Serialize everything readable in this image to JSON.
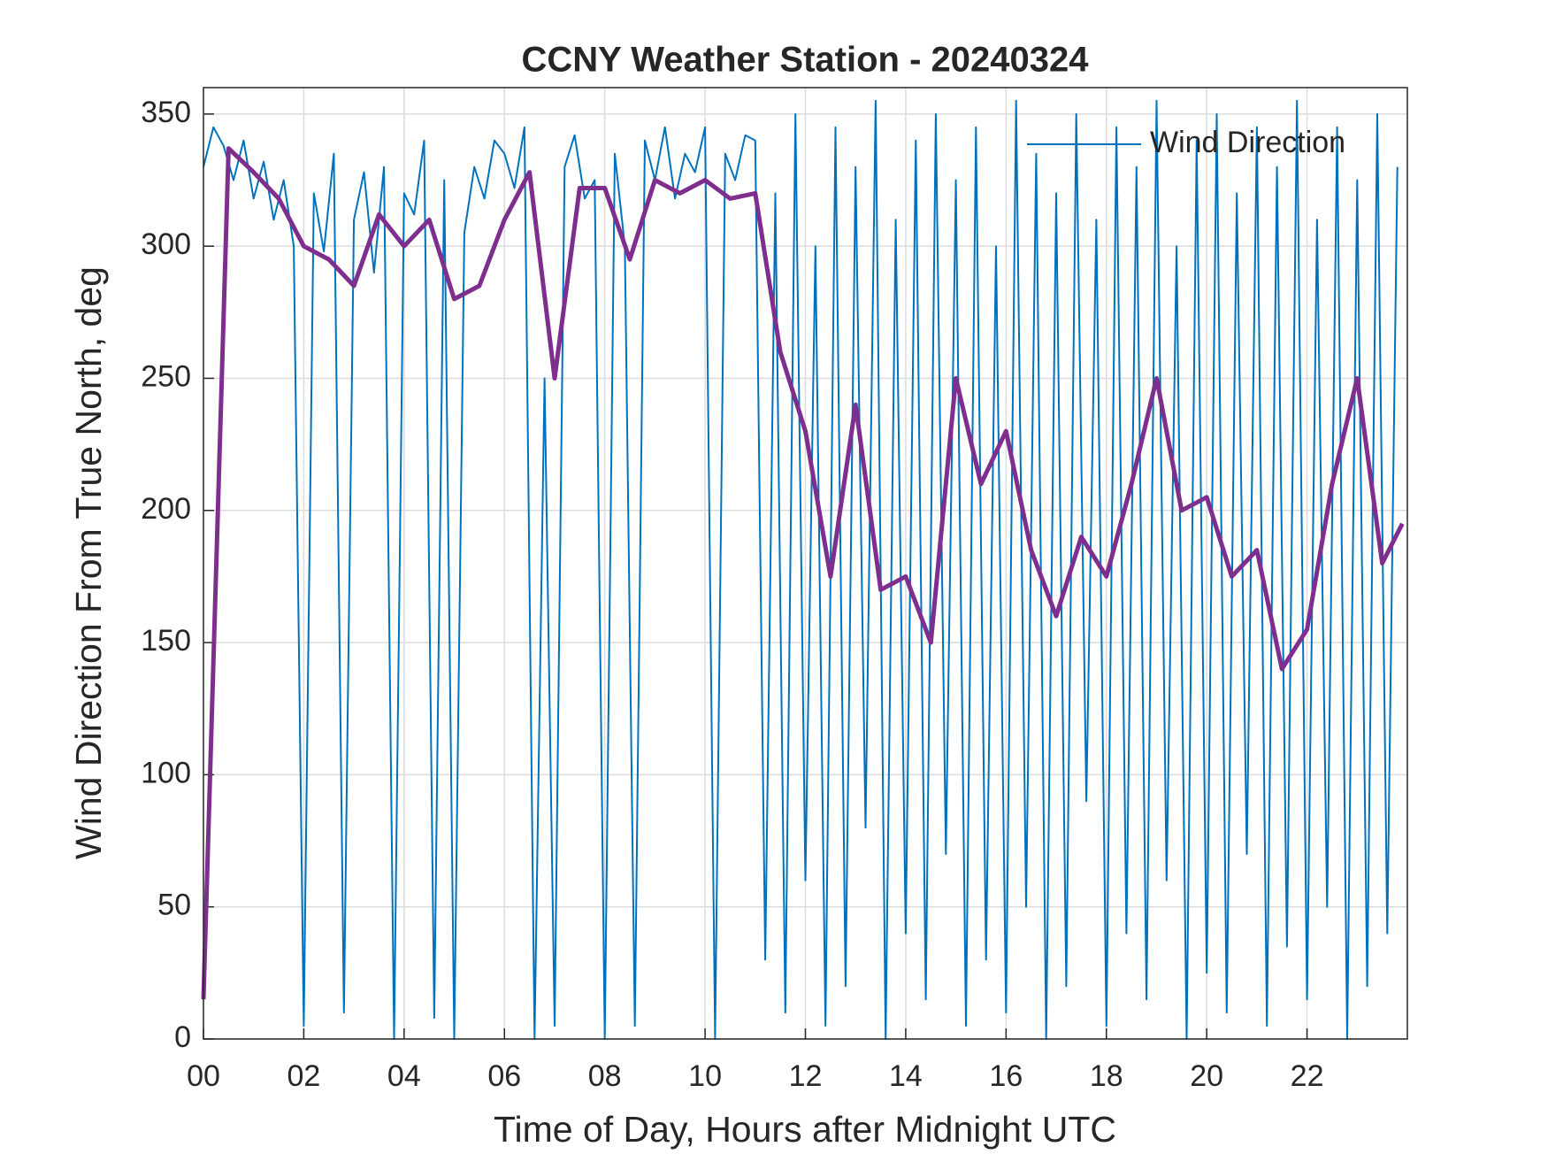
{
  "chart_data": {
    "type": "line",
    "title": "CCNY Weather Station - 20240324",
    "xlabel": "Time of Day, Hours after Midnight UTC",
    "ylabel": "Wind Direction From True North, deg",
    "xlim": [
      0,
      24
    ],
    "ylim": [
      0,
      360
    ],
    "xticks": [
      {
        "value": 0,
        "label": "00"
      },
      {
        "value": 2,
        "label": "02"
      },
      {
        "value": 4,
        "label": "04"
      },
      {
        "value": 6,
        "label": "06"
      },
      {
        "value": 8,
        "label": "08"
      },
      10,
      12,
      14,
      16,
      18,
      20,
      22
    ],
    "yticks": [
      0,
      50,
      100,
      150,
      200,
      250,
      300,
      350
    ],
    "grid": true,
    "legend": "upper right",
    "series": [
      {
        "name": "Wind Direction",
        "color": "#0072BD",
        "x": [
          0,
          0.2,
          0.4,
          0.6,
          0.8,
          1,
          1.2,
          1.4,
          1.6,
          1.8,
          2,
          2.2,
          2.4,
          2.6,
          2.8,
          3,
          3.2,
          3.4,
          3.6,
          3.8,
          4,
          4.2,
          4.4,
          4.6,
          4.8,
          5,
          5.2,
          5.4,
          5.6,
          5.8,
          6,
          6.2,
          6.4,
          6.6,
          6.8,
          7,
          7.2,
          7.4,
          7.6,
          7.8,
          8,
          8.2,
          8.4,
          8.6,
          8.8,
          9,
          9.2,
          9.4,
          9.6,
          9.8,
          10,
          10.2,
          10.4,
          10.6,
          10.8,
          11,
          11.2,
          11.4,
          11.6,
          11.8,
          12,
          12.2,
          12.4,
          12.6,
          12.8,
          13,
          13.2,
          13.4,
          13.6,
          13.8,
          14,
          14.2,
          14.4,
          14.6,
          14.8,
          15,
          15.2,
          15.4,
          15.6,
          15.8,
          16,
          16.2,
          16.4,
          16.6,
          16.8,
          17,
          17.2,
          17.4,
          17.6,
          17.8,
          18,
          18.2,
          18.4,
          18.6,
          18.8,
          19,
          19.2,
          19.4,
          19.6,
          19.8,
          20,
          20.2,
          20.4,
          20.6,
          20.8,
          21,
          21.2,
          21.4,
          21.6,
          21.8,
          22,
          22.2,
          22.4,
          22.6,
          22.8,
          23,
          23.2,
          23.4,
          23.6,
          23.8
        ],
        "values": [
          330,
          345,
          338,
          325,
          340,
          318,
          332,
          310,
          325,
          300,
          5,
          320,
          298,
          335,
          10,
          310,
          328,
          290,
          330,
          0,
          320,
          312,
          340,
          8,
          325,
          0,
          305,
          330,
          318,
          340,
          335,
          322,
          345,
          0,
          250,
          5,
          330,
          342,
          318,
          325,
          0,
          335,
          300,
          5,
          340,
          325,
          345,
          318,
          335,
          328,
          345,
          0,
          335,
          325,
          342,
          340,
          30,
          320,
          10,
          350,
          60,
          300,
          5,
          345,
          20,
          330,
          80,
          355,
          0,
          310,
          40,
          340,
          15,
          350,
          70,
          325,
          5,
          345,
          30,
          300,
          10,
          355,
          50,
          335,
          0,
          320,
          20,
          350,
          90,
          310,
          5,
          345,
          40,
          330,
          15,
          355,
          60,
          300,
          0,
          340,
          25,
          350,
          10,
          320,
          70,
          345,
          5,
          330,
          35,
          355,
          15,
          310,
          50,
          345,
          0,
          325,
          20,
          350,
          40,
          330
        ]
      },
      {
        "color": "#7E2F8E",
        "x": [
          0,
          0.5,
          1,
          1.5,
          2,
          2.5,
          3,
          3.5,
          4,
          4.5,
          5,
          5.5,
          6,
          6.5,
          7,
          7.5,
          8,
          8.5,
          9,
          9.5,
          10,
          10.5,
          11,
          11.5,
          12,
          12.5,
          13,
          13.5,
          14,
          14.5,
          15,
          15.5,
          16,
          16.5,
          17,
          17.5,
          18,
          18.5,
          19,
          19.5,
          20,
          20.5,
          21,
          21.5,
          22,
          22.5,
          23,
          23.5,
          23.9
        ],
        "values": [
          15,
          337,
          328,
          318,
          300,
          295,
          285,
          312,
          300,
          310,
          280,
          285,
          310,
          328,
          250,
          322,
          322,
          295,
          325,
          320,
          325,
          318,
          320,
          260,
          230,
          175,
          240,
          170,
          175,
          150,
          250,
          210,
          230,
          185,
          160,
          190,
          175,
          210,
          250,
          200,
          205,
          175,
          185,
          140,
          155,
          210,
          250,
          180,
          195
        ]
      }
    ]
  }
}
